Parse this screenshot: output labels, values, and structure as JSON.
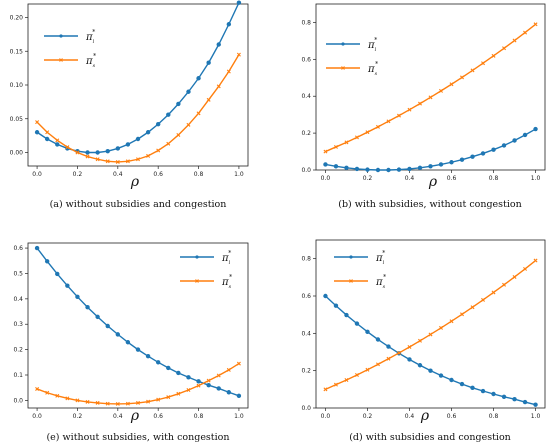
{
  "chart_data": [
    {
      "type": "line",
      "caption": "(a) without subsidies and congestion",
      "xlabel": "ρ",
      "ylabel": "",
      "xlim": [
        0,
        1
      ],
      "ylim": [
        -0.02,
        0.22
      ],
      "xticks": [
        "0.0",
        "0.2",
        "0.4",
        "0.6",
        "0.8",
        "1.0"
      ],
      "yticks": [
        "0.00",
        "0.05",
        "0.10",
        "0.15",
        "0.20"
      ],
      "legend_position": "upper-left",
      "x": [
        0,
        0.05,
        0.1,
        0.15,
        0.2,
        0.25,
        0.3,
        0.35,
        0.4,
        0.45,
        0.5,
        0.55,
        0.6,
        0.65,
        0.7,
        0.75,
        0.8,
        0.85,
        0.9,
        0.95,
        1.0
      ],
      "series": [
        {
          "name": "π_l^*",
          "color": "#1f77b4",
          "marker": "circle",
          "values": [
            0.03,
            0.02,
            0.012,
            0.006,
            0.002,
            0.0,
            0.0,
            0.002,
            0.006,
            0.012,
            0.02,
            0.03,
            0.042,
            0.056,
            0.072,
            0.09,
            0.11,
            0.133,
            0.16,
            0.19,
            0.222
          ]
        },
        {
          "name": "π_s^*",
          "color": "#ff7f0e",
          "marker": "x",
          "values": [
            0.045,
            0.03,
            0.018,
            0.008,
            0.0,
            -0.006,
            -0.01,
            -0.013,
            -0.014,
            -0.013,
            -0.01,
            -0.005,
            0.003,
            0.013,
            0.026,
            0.041,
            0.058,
            0.078,
            0.098,
            0.12,
            0.145
          ]
        }
      ]
    },
    {
      "type": "line",
      "caption": "(b) with subsidies, without congestion",
      "xlabel": "ρ",
      "ylabel": "",
      "xlim": [
        0,
        1
      ],
      "ylim": [
        0,
        0.9
      ],
      "xticks": [
        "0.0",
        "0.2",
        "0.4",
        "0.6",
        "0.8",
        "1.0"
      ],
      "yticks": [
        "0.0",
        "0.2",
        "0.4",
        "0.6",
        "0.8"
      ],
      "legend_position": "upper-left",
      "x": [
        0,
        0.05,
        0.1,
        0.15,
        0.2,
        0.25,
        0.3,
        0.35,
        0.4,
        0.45,
        0.5,
        0.55,
        0.6,
        0.65,
        0.7,
        0.75,
        0.8,
        0.85,
        0.9,
        0.95,
        1.0
      ],
      "series": [
        {
          "name": "π_l^*",
          "color": "#1f77b4",
          "marker": "circle",
          "values": [
            0.03,
            0.02,
            0.012,
            0.006,
            0.002,
            0.0,
            0.0,
            0.002,
            0.006,
            0.012,
            0.02,
            0.03,
            0.042,
            0.056,
            0.072,
            0.09,
            0.11,
            0.133,
            0.16,
            0.19,
            0.222
          ]
        },
        {
          "name": "π_s^*",
          "color": "#ff7f0e",
          "marker": "x",
          "values": [
            0.1,
            0.125,
            0.15,
            0.177,
            0.205,
            0.234,
            0.264,
            0.295,
            0.327,
            0.36,
            0.394,
            0.429,
            0.465,
            0.502,
            0.54,
            0.579,
            0.619,
            0.66,
            0.702,
            0.745,
            0.79
          ]
        }
      ]
    },
    {
      "type": "line",
      "caption": "(e) without subsidies, with congestion",
      "xlabel": "ρ",
      "ylabel": "",
      "xlim": [
        0,
        1
      ],
      "ylim": [
        -0.03,
        0.62
      ],
      "xticks": [
        "0.0",
        "0.2",
        "0.4",
        "0.6",
        "0.8",
        "1.0"
      ],
      "yticks": [
        "0.0",
        "0.1",
        "0.2",
        "0.3",
        "0.4",
        "0.5",
        "0.6"
      ],
      "legend_position": "upper-right",
      "x": [
        0,
        0.05,
        0.1,
        0.15,
        0.2,
        0.25,
        0.3,
        0.35,
        0.4,
        0.45,
        0.5,
        0.55,
        0.6,
        0.65,
        0.7,
        0.75,
        0.8,
        0.85,
        0.9,
        0.95,
        1.0
      ],
      "series": [
        {
          "name": "π_l^*",
          "color": "#1f77b4",
          "marker": "circle",
          "values": [
            0.6,
            0.548,
            0.498,
            0.452,
            0.408,
            0.367,
            0.329,
            0.293,
            0.26,
            0.229,
            0.2,
            0.174,
            0.15,
            0.128,
            0.108,
            0.091,
            0.075,
            0.06,
            0.047,
            0.032,
            0.018
          ]
        },
        {
          "name": "π_s^*",
          "color": "#ff7f0e",
          "marker": "x",
          "values": [
            0.045,
            0.03,
            0.018,
            0.008,
            0.0,
            -0.006,
            -0.01,
            -0.013,
            -0.014,
            -0.013,
            -0.01,
            -0.005,
            0.003,
            0.013,
            0.026,
            0.041,
            0.058,
            0.078,
            0.098,
            0.12,
            0.145
          ]
        }
      ]
    },
    {
      "type": "line",
      "caption": "(d) with subsidies and congestion",
      "xlabel": "ρ",
      "ylabel": "",
      "xlim": [
        0,
        1
      ],
      "ylim": [
        0,
        0.9
      ],
      "xticks": [
        "0.0",
        "0.2",
        "0.4",
        "0.6",
        "0.8",
        "1.0"
      ],
      "yticks": [
        "0.0",
        "0.2",
        "0.4",
        "0.6",
        "0.8"
      ],
      "legend_position": "upper-left",
      "x": [
        0,
        0.05,
        0.1,
        0.15,
        0.2,
        0.25,
        0.3,
        0.35,
        0.4,
        0.45,
        0.5,
        0.55,
        0.6,
        0.65,
        0.7,
        0.75,
        0.8,
        0.85,
        0.9,
        0.95,
        1.0
      ],
      "series": [
        {
          "name": "π_l^*",
          "color": "#1f77b4",
          "marker": "circle",
          "values": [
            0.6,
            0.548,
            0.498,
            0.452,
            0.408,
            0.367,
            0.329,
            0.293,
            0.26,
            0.229,
            0.2,
            0.174,
            0.15,
            0.128,
            0.108,
            0.091,
            0.075,
            0.06,
            0.047,
            0.032,
            0.018
          ]
        },
        {
          "name": "π_s^*",
          "color": "#ff7f0e",
          "marker": "x",
          "values": [
            0.1,
            0.125,
            0.15,
            0.177,
            0.205,
            0.234,
            0.264,
            0.295,
            0.327,
            0.36,
            0.394,
            0.429,
            0.465,
            0.502,
            0.54,
            0.579,
            0.619,
            0.66,
            0.702,
            0.745,
            0.79
          ]
        }
      ]
    }
  ]
}
